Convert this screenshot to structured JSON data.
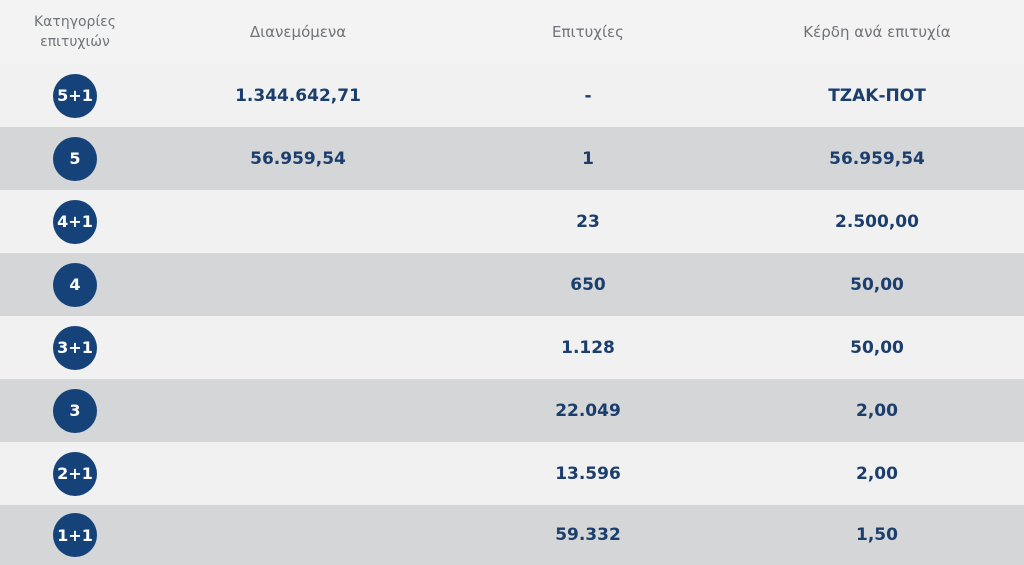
{
  "headers": {
    "category": "Κατηγορίες επιτυχιών",
    "distributed": "Διανεμόμενα",
    "winners": "Επιτυχίες",
    "prize": "Κέρδη ανά επιτυχία"
  },
  "rows": [
    {
      "category": "5+1",
      "distributed": "1.344.642,71",
      "winners": "-",
      "prize": "ΤΖΑΚ-ΠΟΤ"
    },
    {
      "category": "5",
      "distributed": "56.959,54",
      "winners": "1",
      "prize": "56.959,54"
    },
    {
      "category": "4+1",
      "distributed": "",
      "winners": "23",
      "prize": "2.500,00"
    },
    {
      "category": "4",
      "distributed": "",
      "winners": "650",
      "prize": "50,00"
    },
    {
      "category": "3+1",
      "distributed": "",
      "winners": "1.128",
      "prize": "50,00"
    },
    {
      "category": "3",
      "distributed": "",
      "winners": "22.049",
      "prize": "2,00"
    },
    {
      "category": "2+1",
      "distributed": "",
      "winners": "13.596",
      "prize": "2,00"
    },
    {
      "category": "1+1",
      "distributed": "",
      "winners": "59.332",
      "prize": "1,50"
    }
  ],
  "colors": {
    "badge": "#16427a",
    "value_text": "#1b3e6d",
    "header_text": "#6f7378",
    "row_light": "#f1f1f1",
    "row_dark": "#d4d6d8"
  }
}
